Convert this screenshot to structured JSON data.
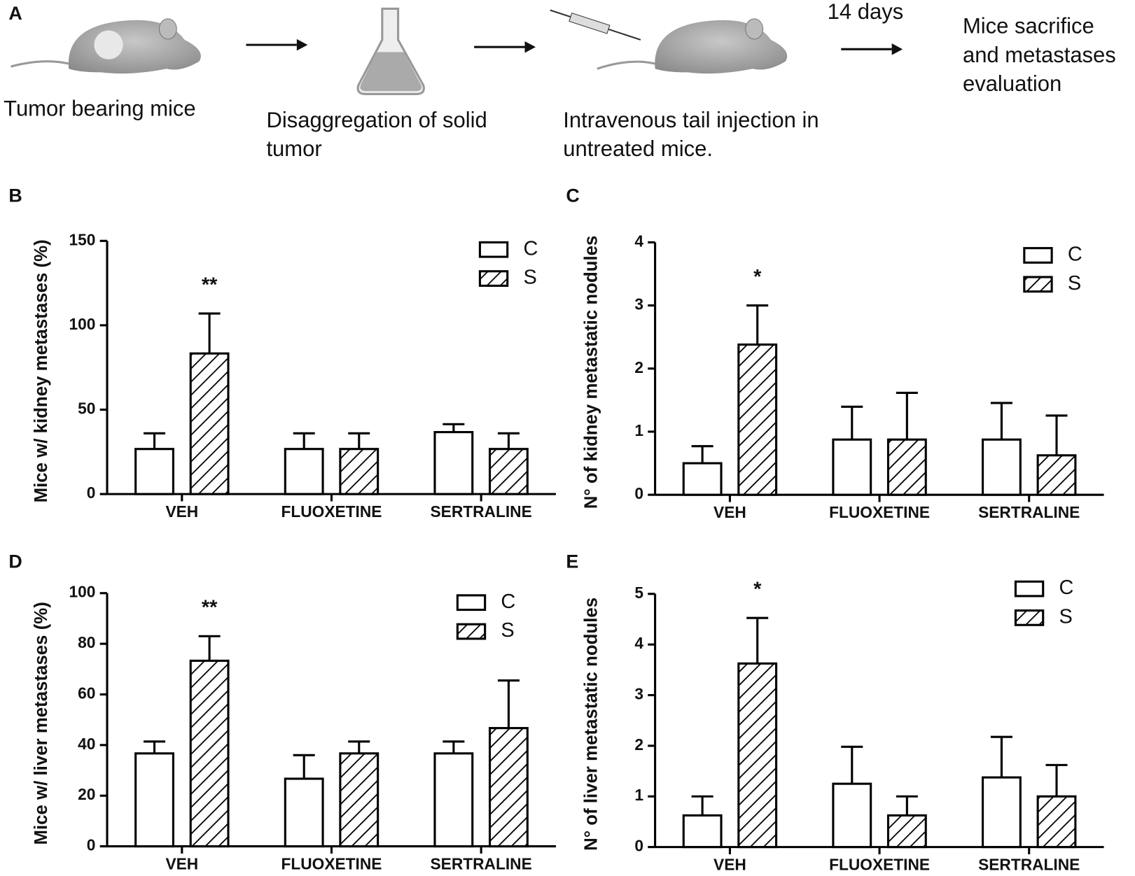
{
  "schematic": {
    "panel": "A",
    "steps": [
      [
        "Tumor bearing mice"
      ],
      [
        "Disaggregation of solid",
        "tumor"
      ],
      [
        "Intravenous tail injection in",
        "untreated mice."
      ],
      [
        "Mice sacrifice",
        "and metastases",
        "evaluation"
      ]
    ],
    "interval": "14 days"
  },
  "chart_data": [
    {
      "type": "bar",
      "panel": "B",
      "ylabel": "Mice w/ kidney metastases (%)",
      "categories": [
        "VEH",
        "FLUOXETINE",
        "SERTRALINE"
      ],
      "ylim": [
        0,
        150
      ],
      "yticks": [
        0,
        50,
        100,
        150
      ],
      "annotations": [
        "**"
      ],
      "series": [
        {
          "name": "C",
          "color": "#ffffff",
          "hatch": false,
          "values": [
            26.7,
            26.7,
            36.7
          ],
          "errors": [
            9.3,
            9.3,
            4.7
          ]
        },
        {
          "name": "S",
          "color": "#ffffff",
          "hatch": true,
          "values": [
            83.3,
            26.7,
            26.7
          ],
          "errors": [
            23.7,
            9.3,
            9.3
          ]
        }
      ]
    },
    {
      "type": "bar",
      "panel": "C",
      "ylabel": "N° of kidney metastatic nodules",
      "categories": [
        "VEH",
        "FLUOXETINE",
        "SERTRALINE"
      ],
      "ylim": [
        0,
        4
      ],
      "yticks": [
        0,
        1,
        2,
        3,
        4
      ],
      "annotations": [
        "*"
      ],
      "series": [
        {
          "name": "C",
          "color": "#ffffff",
          "hatch": false,
          "values": [
            0.5,
            0.875,
            0.875
          ],
          "errors": [
            0.27,
            0.52,
            0.58
          ]
        },
        {
          "name": "S",
          "color": "#ffffff",
          "hatch": true,
          "values": [
            2.38,
            0.875,
            0.625
          ],
          "errors": [
            0.62,
            0.74,
            0.63
          ]
        }
      ]
    },
    {
      "type": "bar",
      "panel": "D",
      "ylabel": "Mice w/ liver metastases (%)",
      "categories": [
        "VEH",
        "FLUOXETINE",
        "SERTRALINE"
      ],
      "ylim": [
        0,
        100
      ],
      "yticks": [
        0,
        20,
        40,
        60,
        80,
        100
      ],
      "annotations": [
        "**"
      ],
      "series": [
        {
          "name": "C",
          "color": "#ffffff",
          "hatch": false,
          "values": [
            36.7,
            26.7,
            36.7
          ],
          "errors": [
            4.7,
            9.3,
            4.7
          ]
        },
        {
          "name": "S",
          "color": "#ffffff",
          "hatch": true,
          "values": [
            73.3,
            36.7,
            46.7
          ],
          "errors": [
            9.7,
            4.7,
            18.8
          ]
        }
      ]
    },
    {
      "type": "bar",
      "panel": "E",
      "ylabel": "N° of liver metastatic nodules",
      "categories": [
        "VEH",
        "FLUOXETINE",
        "SERTRALINE"
      ],
      "ylim": [
        0,
        5
      ],
      "yticks": [
        0,
        1,
        2,
        3,
        4,
        5
      ],
      "annotations": [
        "*"
      ],
      "series": [
        {
          "name": "C",
          "color": "#ffffff",
          "hatch": false,
          "values": [
            0.625,
            1.25,
            1.375
          ],
          "errors": [
            0.375,
            0.73,
            0.8
          ]
        },
        {
          "name": "S",
          "color": "#ffffff",
          "hatch": true,
          "values": [
            3.625,
            0.625,
            1.0
          ],
          "errors": [
            0.9,
            0.375,
            0.62
          ]
        }
      ]
    }
  ]
}
